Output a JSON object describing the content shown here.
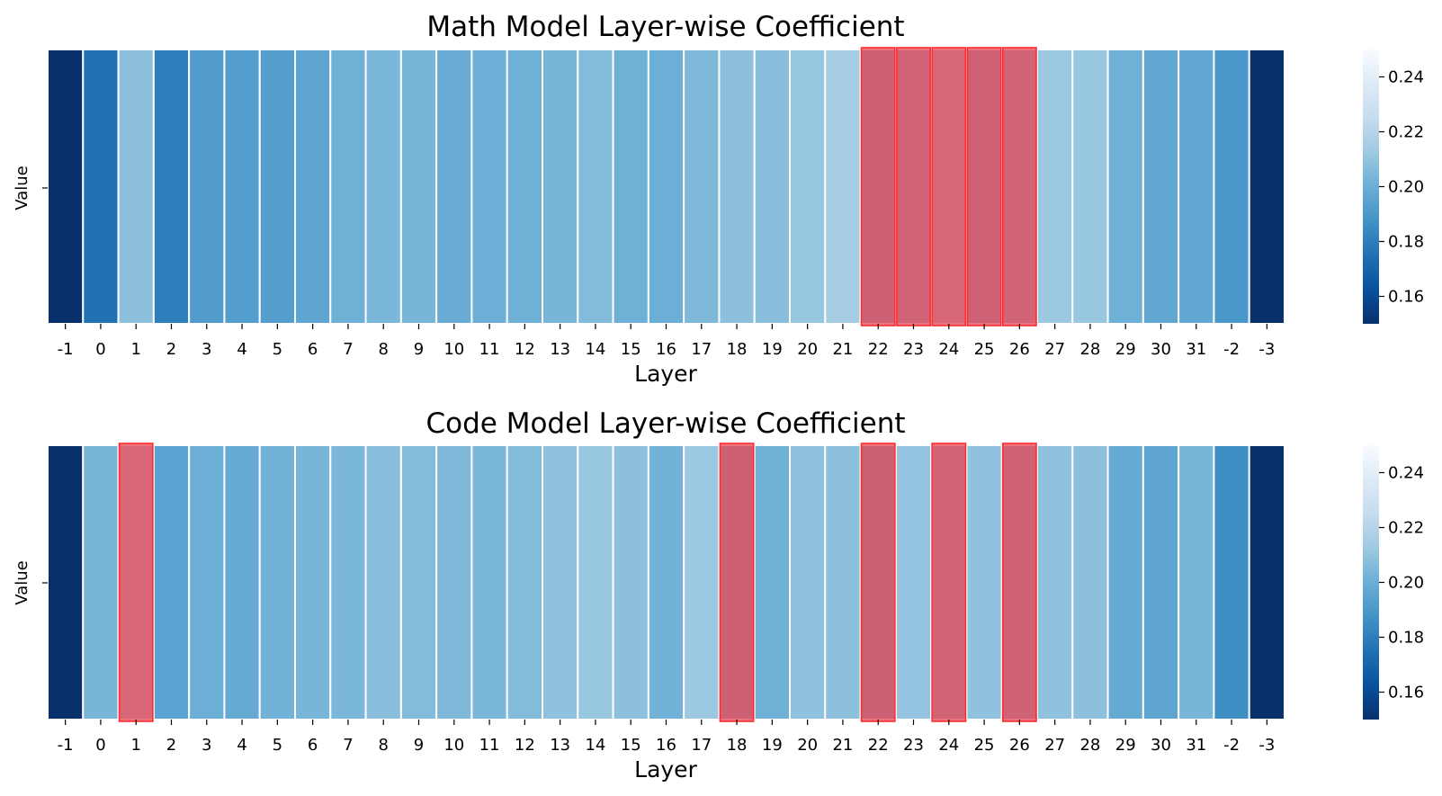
{
  "chart_data": [
    {
      "type": "heatmap",
      "title": "Math Model Layer-wise Coefficient",
      "xlabel": "Layer",
      "ylabel": "Value",
      "categories": [
        "-1",
        "0",
        "1",
        "2",
        "3",
        "4",
        "5",
        "6",
        "7",
        "8",
        "9",
        "10",
        "11",
        "12",
        "13",
        "14",
        "15",
        "16",
        "17",
        "18",
        "19",
        "20",
        "21",
        "22",
        "23",
        "24",
        "25",
        "26",
        "27",
        "28",
        "29",
        "30",
        "31",
        "-2",
        "-3"
      ],
      "values": [
        0.15,
        0.175,
        0.208,
        0.18,
        0.192,
        0.193,
        0.193,
        0.196,
        0.201,
        0.204,
        0.203,
        0.199,
        0.2,
        0.201,
        0.203,
        0.206,
        0.201,
        0.2,
        0.205,
        0.208,
        0.207,
        0.211,
        0.215,
        0.198,
        0.203,
        0.21,
        0.2,
        0.204,
        0.212,
        0.211,
        0.201,
        0.197,
        0.197,
        0.19,
        0.15
      ],
      "highlighted": [
        "22",
        "23",
        "24",
        "25",
        "26"
      ],
      "colorbar": {
        "min": 0.15,
        "max": 0.25,
        "ticks": [
          "0.16",
          "0.18",
          "0.20",
          "0.22",
          "0.24"
        ]
      }
    },
    {
      "type": "heatmap",
      "title": "Code Model Layer-wise Coefficient",
      "xlabel": "Layer",
      "ylabel": "Value",
      "categories": [
        "-1",
        "0",
        "1",
        "2",
        "3",
        "4",
        "5",
        "6",
        "7",
        "8",
        "9",
        "10",
        "11",
        "12",
        "13",
        "14",
        "15",
        "16",
        "17",
        "18",
        "19",
        "20",
        "21",
        "22",
        "23",
        "24",
        "25",
        "26",
        "27",
        "28",
        "29",
        "30",
        "31",
        "-2",
        "-3"
      ],
      "values": [
        0.15,
        0.203,
        0.212,
        0.195,
        0.2,
        0.198,
        0.202,
        0.203,
        0.204,
        0.207,
        0.206,
        0.205,
        0.204,
        0.206,
        0.209,
        0.211,
        0.208,
        0.202,
        0.212,
        0.198,
        0.201,
        0.209,
        0.208,
        0.197,
        0.21,
        0.205,
        0.209,
        0.201,
        0.209,
        0.208,
        0.198,
        0.196,
        0.203,
        0.186,
        0.15
      ],
      "highlighted": [
        "1",
        "18",
        "22",
        "24",
        "26"
      ],
      "colorbar": {
        "min": 0.15,
        "max": 0.25,
        "ticks": [
          "0.16",
          "0.18",
          "0.20",
          "0.22",
          "0.24"
        ]
      }
    }
  ]
}
